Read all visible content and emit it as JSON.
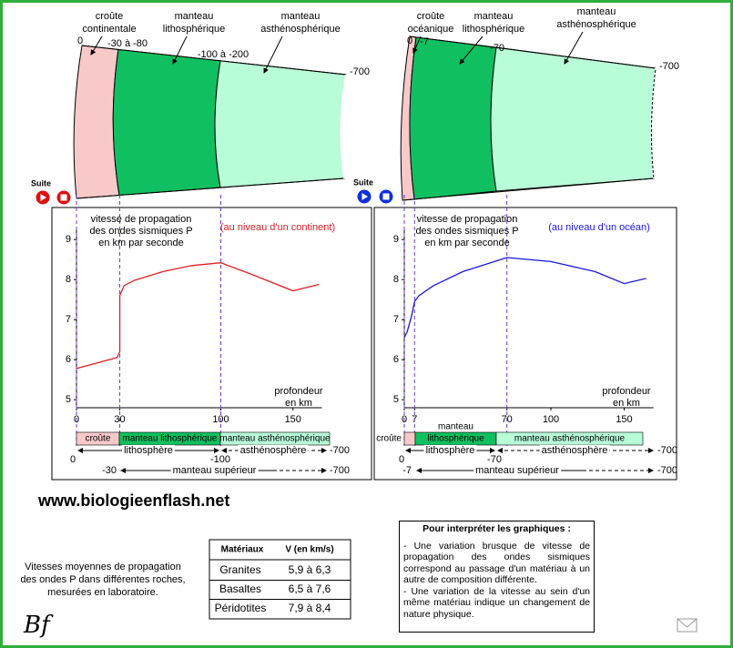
{
  "site": "www.biologieenflash.net",
  "logo": "Bf",
  "panels": [
    {
      "layers": [
        [
          "croûte",
          "continentale"
        ],
        [
          "manteau",
          "lithosphérique"
        ],
        [
          "manteau",
          "asthénosphérique"
        ]
      ],
      "layer_colors": [
        "#f9c9c9",
        "#10c060",
        "#b8fcd8"
      ],
      "depths": [
        "0",
        "-30 à -80",
        "-100 à -200",
        "-700"
      ],
      "suite": "Suite",
      "button_color": "#e01010",
      "chart": {
        "type": "line",
        "title": [
          "vitesse de propagation",
          "des ondes sismiques P",
          "en km par seconde"
        ],
        "note": "(au niveau d'un continent)",
        "color": "#e02020",
        "xlabel": [
          "profondeur",
          "en km"
        ],
        "xlim": [
          0,
          170
        ],
        "xticks": [
          0,
          30,
          100,
          150
        ],
        "ylim": [
          4.8,
          9.3
        ],
        "yticks": [
          5,
          6,
          7,
          8,
          9
        ],
        "guides": [
          0,
          30,
          100
        ],
        "x": [
          0,
          28,
          30,
          30,
          33,
          40,
          60,
          80,
          100,
          120,
          150,
          168
        ],
        "values": [
          5.78,
          6.05,
          6.2,
          7.6,
          7.85,
          7.98,
          8.2,
          8.35,
          8.42,
          8.15,
          7.72,
          7.88
        ]
      },
      "bar": [
        [
          "croûte"
        ],
        [
          "manteau  lithosphérique"
        ],
        [
          "manteau asthénosphérique"
        ]
      ],
      "rows": [
        {
          "start": "0",
          "label": "lithosphère",
          "mid": "-100",
          "label2": "asthénosphère",
          "end": "-700"
        },
        {
          "start": "-30",
          "label": "manteau supérieur",
          "end": "-700"
        }
      ]
    },
    {
      "layers": [
        [
          "croûte",
          "océanique"
        ],
        [
          "manteau",
          "lithosphérique"
        ],
        [
          "manteau",
          "asthénosphérique"
        ]
      ],
      "layer_colors": [
        "#f9c9c9",
        "#10c060",
        "#b8fcd8"
      ],
      "depths": [
        "0",
        "-7",
        "-70",
        "-700"
      ],
      "suite": "Suite",
      "button_color": "#1030e0",
      "chart": {
        "type": "line",
        "title": [
          "vitesse de propagation",
          "des ondes sismiques P",
          "en km par seconde"
        ],
        "note": "(au niveau d'un océan)",
        "color": "#1818e0",
        "xlabel": [
          "profondeur",
          "en km"
        ],
        "xlim": [
          0,
          170
        ],
        "xticks": [
          0,
          7,
          70,
          100,
          150
        ],
        "ylim": [
          4.8,
          9.3
        ],
        "yticks": [
          5,
          6,
          7,
          8,
          9
        ],
        "guides": [
          0,
          7,
          70
        ],
        "x": [
          0,
          2,
          5,
          7,
          10,
          20,
          40,
          70,
          100,
          130,
          150,
          165
        ],
        "values": [
          6.55,
          6.7,
          7.1,
          7.45,
          7.6,
          7.85,
          8.2,
          8.55,
          8.45,
          8.2,
          7.9,
          8.03
        ]
      },
      "bar": [
        [
          "croûte"
        ],
        [
          "manteau",
          "lithosphérique"
        ],
        [
          "manteau asthénosphérique"
        ]
      ],
      "rows": [
        {
          "start": "0",
          "label": "lithosphère",
          "mid": "-70",
          "label2": "asthénosphère",
          "end": "-700"
        },
        {
          "start": "-7",
          "label": "manteau supérieur",
          "end": "-700"
        }
      ]
    }
  ],
  "table": {
    "caption": [
      "Vitesses moyennes de propagation",
      "des ondes P dans différentes roches,",
      "mesurées en laboratoire."
    ],
    "header": [
      "Matériaux",
      "V (en km/s)"
    ],
    "rows": [
      [
        "Granites",
        "5,9 à 6,3"
      ],
      [
        "Basaltes",
        "6,5 à 7,6"
      ],
      [
        "Péridotites",
        "7,9 à 8,4"
      ]
    ]
  },
  "info": {
    "title": "Pour interpréter les graphiques :",
    "paragraphs": [
      "- Une variation brusque de vitesse de propagation des ondes sismiques correspond au passage d'un matériau à un autre de composition différente.",
      "- Une variation de la vitesse au sein d'un même matériau indique un changement de nature physique."
    ]
  }
}
